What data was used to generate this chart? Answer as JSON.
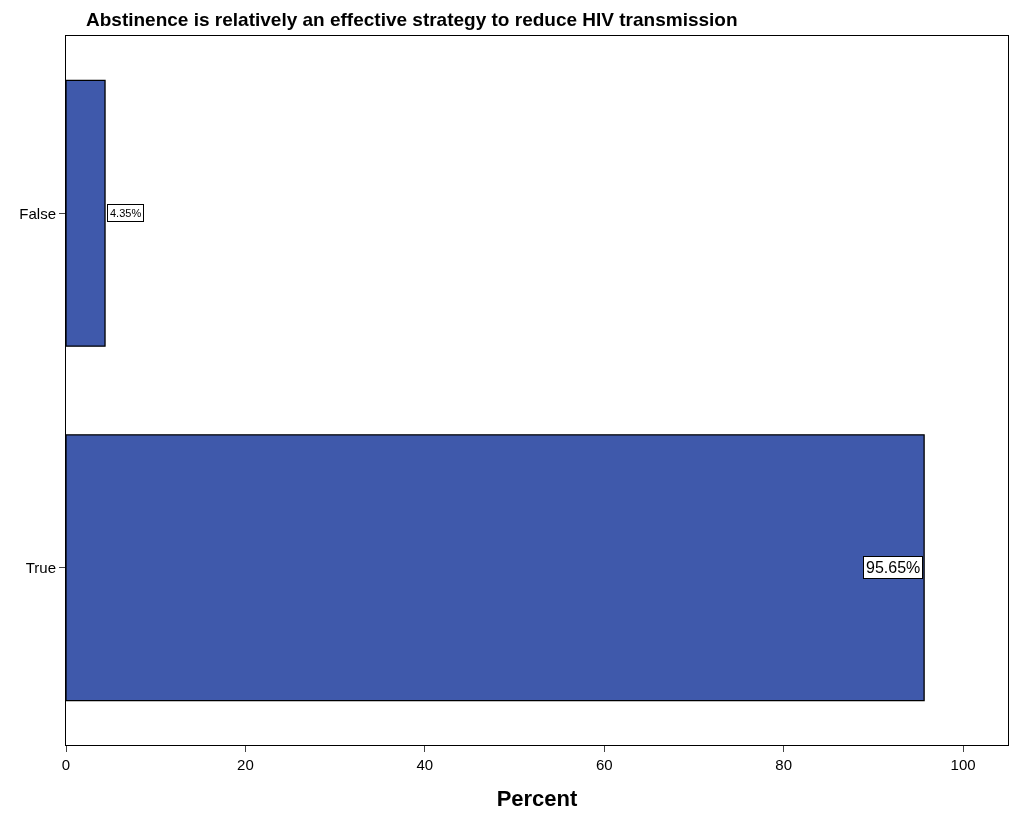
{
  "chart_data": {
    "type": "bar",
    "orientation": "horizontal",
    "title": "Abstinence is relatively an effective strategy to reduce HIV transmission",
    "xlabel": "Percent",
    "categories": [
      "False",
      "True"
    ],
    "values": [
      4.35,
      95.65
    ],
    "value_labels": [
      "4.35%",
      "95.65%"
    ],
    "color": "#3f59ab",
    "xlim": [
      0,
      105
    ],
    "xticks": [
      0,
      20,
      40,
      60,
      80,
      100
    ],
    "grid": false,
    "legend": false
  }
}
